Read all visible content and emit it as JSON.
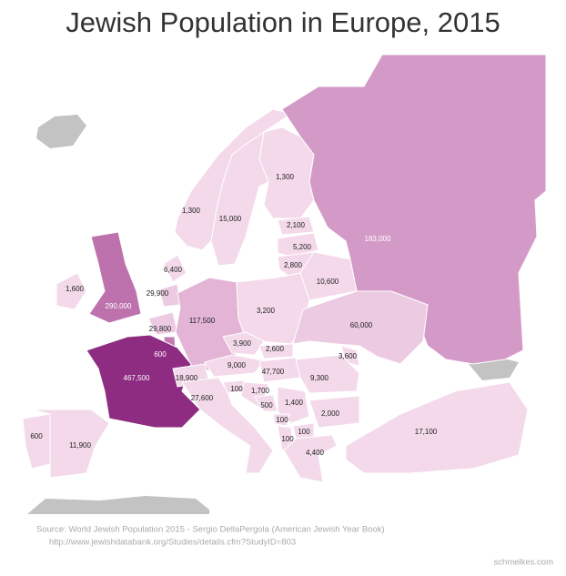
{
  "title": "Jewish Population in Europe, 2015",
  "regions": [
    {
      "value": 1300,
      "label": "1,300",
      "color": "#f3d9ea"
    },
    {
      "value": 1300,
      "label": "1,300",
      "color": "#f3d9ea"
    },
    {
      "value": 15000,
      "label": "15,000",
      "color": "#f3d9ea"
    },
    {
      "value": 2100,
      "label": "2,100",
      "color": "#f3d9ea"
    },
    {
      "value": 5200,
      "label": "5,200",
      "color": "#f3d9ea"
    },
    {
      "value": 2800,
      "label": "2,800",
      "color": "#f3d9ea"
    },
    {
      "value": 6400,
      "label": "6,400",
      "color": "#f3d9ea"
    },
    {
      "value": 1600,
      "label": "1,600",
      "color": "#f3d9ea"
    },
    {
      "value": 290000,
      "label": "290,000",
      "color": "#bd72ae"
    },
    {
      "value": 29900,
      "label": "29,900",
      "color": "#eccae2"
    },
    {
      "value": 10600,
      "label": "10,600",
      "color": "#f3d9ea"
    },
    {
      "value": 183000,
      "label": "183,000",
      "color": "#d49ac7"
    },
    {
      "value": 29800,
      "label": "29,800",
      "color": "#eccae2"
    },
    {
      "value": 117500,
      "label": "117,500",
      "color": "#e3b4d6"
    },
    {
      "value": 3200,
      "label": "3,200",
      "color": "#f3d9ea"
    },
    {
      "value": 60000,
      "label": "60,000",
      "color": "#eccae2"
    },
    {
      "value": 600,
      "label": "600",
      "color": "#c37db5"
    },
    {
      "value": 3900,
      "label": "3,900",
      "color": "#f3d9ea"
    },
    {
      "value": 2600,
      "label": "2,600",
      "color": "#f3d9ea"
    },
    {
      "value": 3600,
      "label": "3,600",
      "color": "#f3d9ea"
    },
    {
      "value": 467500,
      "label": "467,500",
      "color": "#8d2c80"
    },
    {
      "value": 18900,
      "label": "18,900",
      "color": "#f3d9ea"
    },
    {
      "value": 9000,
      "label": "9,000",
      "color": "#f3d9ea"
    },
    {
      "value": 47700,
      "label": "47,700",
      "color": "#f3d9ea"
    },
    {
      "value": 9300,
      "label": "9,300",
      "color": "#f3d9ea"
    },
    {
      "value": 27600,
      "label": "27,600",
      "color": "#f3d9ea"
    },
    {
      "value": 100,
      "label": "100",
      "color": "#f3d9ea"
    },
    {
      "value": 1700,
      "label": "1,700",
      "color": "#f3d9ea"
    },
    {
      "value": 500,
      "label": "500",
      "color": "#f3d9ea"
    },
    {
      "value": 1400,
      "label": "1,400",
      "color": "#f3d9ea"
    },
    {
      "value": 2000,
      "label": "2,000",
      "color": "#f3d9ea"
    },
    {
      "value": 100,
      "label": "100",
      "color": "#f3d9ea"
    },
    {
      "value": 100,
      "label": "100",
      "color": "#f3d9ea"
    },
    {
      "value": 100,
      "label": "100",
      "color": "#f3d9ea"
    },
    {
      "value": 17100,
      "label": "17,100",
      "color": "#f3d9ea"
    },
    {
      "value": 600,
      "label": "600",
      "color": "#f3d9ea"
    },
    {
      "value": 11900,
      "label": "11,900",
      "color": "#f3d9ea"
    },
    {
      "value": 4400,
      "label": "4,400",
      "color": "#f3d9ea"
    }
  ],
  "source": [
    "Source: World Jewish Population 2015 - Sergio DellaPergola (American Jewish Year Book)",
    "http://www.jewishdatabank.org/Studies/details.cfm?StudyID=803"
  ],
  "credit": "schmelkes.com"
}
